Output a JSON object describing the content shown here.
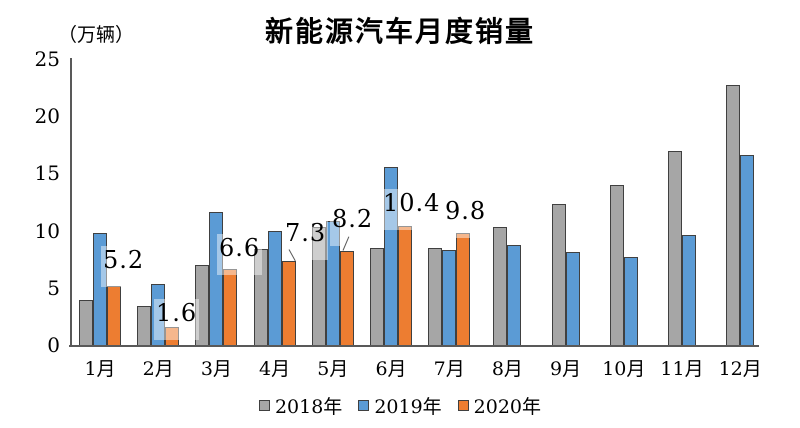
{
  "header": {
    "title": "新能源汽车月度销量",
    "unit_label": "（万辆）"
  },
  "colors": {
    "series_2018": "#A6A6A6",
    "series_2019": "#5B9BD5",
    "series_2020": "#ED7D31",
    "bar_border": "#404040",
    "axis": "#595959",
    "text": "#000000"
  },
  "chart_data": {
    "type": "bar",
    "title": "新能源汽车月度销量",
    "ylabel": "（万辆）",
    "xlabel": "",
    "categories": [
      "1月",
      "2月",
      "3月",
      "4月",
      "5月",
      "6月",
      "7月",
      "8月",
      "9月",
      "10月",
      "11月",
      "12月"
    ],
    "series": [
      {
        "name": "2018年",
        "color": "#A6A6A6",
        "values": [
          3.9,
          3.4,
          7.0,
          8.4,
          10.3,
          8.5,
          8.5,
          10.3,
          12.3,
          14.0,
          17.0,
          22.7
        ]
      },
      {
        "name": "2019年",
        "color": "#5B9BD5",
        "values": [
          9.8,
          5.3,
          11.6,
          10.0,
          10.8,
          15.6,
          8.3,
          8.7,
          8.1,
          7.7,
          9.6,
          16.6
        ]
      },
      {
        "name": "2020年",
        "color": "#ED7D31",
        "values": [
          5.2,
          1.6,
          6.6,
          7.3,
          8.2,
          10.4,
          9.8,
          null,
          null,
          null,
          null,
          null
        ],
        "data_labels": [
          "5.2",
          "1.6",
          "6.6",
          "7.3",
          "8.2",
          "10.4",
          "9.8"
        ]
      }
    ],
    "ylim": [
      0,
      25
    ],
    "yticks": [
      0,
      5,
      10,
      15,
      20,
      25
    ],
    "grid": false,
    "legend_position": "bottom"
  },
  "legend": {
    "items": [
      {
        "label": "2018年",
        "color": "#A6A6A6"
      },
      {
        "label": "2019年",
        "color": "#5B9BD5"
      },
      {
        "label": "2020年",
        "color": "#ED7D31"
      }
    ]
  }
}
